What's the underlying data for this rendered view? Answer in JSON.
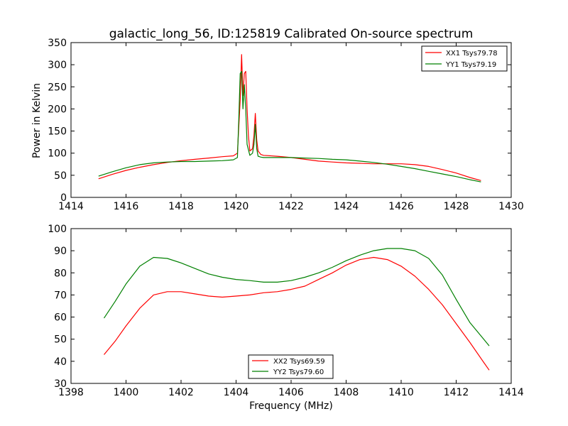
{
  "chart_data": [
    {
      "type": "line",
      "title": "galactic_long_56, ID:125819 Calibrated On-source spectrum",
      "xlabel": "",
      "ylabel": "Power in Kelvin",
      "xlim": [
        1414,
        1430
      ],
      "ylim": [
        0,
        350
      ],
      "xticks": [
        "1414",
        "1416",
        "1418",
        "1420",
        "1422",
        "1424",
        "1426",
        "1428",
        "1430"
      ],
      "yticks": [
        "0",
        "50",
        "100",
        "150",
        "200",
        "250",
        "300",
        "350"
      ],
      "legend_position": "top-right",
      "grid": false,
      "series": [
        {
          "name": "XX1 Tsys79.78",
          "color": "#ff0000",
          "x": [
            1415.0,
            1415.5,
            1416.0,
            1416.5,
            1417.0,
            1417.5,
            1418.0,
            1418.5,
            1419.0,
            1419.5,
            1419.9,
            1420.05,
            1420.15,
            1420.2,
            1420.25,
            1420.3,
            1420.35,
            1420.4,
            1420.45,
            1420.5,
            1420.6,
            1420.65,
            1420.7,
            1420.75,
            1420.8,
            1420.9,
            1421.0,
            1421.5,
            1422.0,
            1422.5,
            1423.0,
            1423.5,
            1424.0,
            1424.5,
            1425.0,
            1425.5,
            1426.0,
            1426.5,
            1427.0,
            1427.5,
            1428.0,
            1428.5,
            1428.9
          ],
          "values": [
            42,
            52,
            61,
            68,
            74,
            79,
            83,
            86,
            89,
            92,
            94,
            100,
            220,
            323,
            230,
            280,
            285,
            200,
            140,
            105,
            110,
            140,
            190,
            130,
            105,
            97,
            95,
            93,
            90,
            86,
            82,
            80,
            78,
            77,
            76,
            76,
            76,
            74,
            70,
            63,
            55,
            45,
            38
          ]
        },
        {
          "name": "YY1 Tsys79.19",
          "color": "#008000",
          "x": [
            1415.0,
            1415.5,
            1416.0,
            1416.5,
            1417.0,
            1417.5,
            1418.0,
            1418.5,
            1419.0,
            1419.5,
            1419.9,
            1420.05,
            1420.1,
            1420.15,
            1420.2,
            1420.25,
            1420.3,
            1420.35,
            1420.4,
            1420.5,
            1420.6,
            1420.65,
            1420.7,
            1420.75,
            1420.8,
            1420.9,
            1421.0,
            1421.5,
            1422.0,
            1422.5,
            1423.0,
            1423.5,
            1424.0,
            1424.5,
            1425.0,
            1425.5,
            1426.0,
            1426.5,
            1427.0,
            1427.5,
            1428.0,
            1428.5,
            1428.9
          ],
          "values": [
            48,
            58,
            67,
            74,
            78,
            80,
            81,
            81,
            82,
            83,
            85,
            90,
            180,
            280,
            285,
            200,
            255,
            200,
            120,
            95,
            100,
            120,
            165,
            110,
            93,
            91,
            90,
            90,
            90,
            89,
            88,
            86,
            85,
            82,
            79,
            75,
            70,
            65,
            59,
            53,
            47,
            40,
            35
          ]
        }
      ]
    },
    {
      "type": "line",
      "title": "",
      "xlabel": "Frequency (MHz)",
      "ylabel": "",
      "xlim": [
        1398,
        1414
      ],
      "ylim": [
        30,
        100
      ],
      "xticks": [
        "1398",
        "1400",
        "1402",
        "1404",
        "1406",
        "1408",
        "1410",
        "1412",
        "1414"
      ],
      "yticks": [
        "30",
        "40",
        "50",
        "60",
        "70",
        "80",
        "90",
        "100"
      ],
      "legend_position": "lower-center",
      "grid": false,
      "series": [
        {
          "name": "XX2 Tsys69.59",
          "color": "#ff0000",
          "x": [
            1399.2,
            1399.6,
            1400.0,
            1400.5,
            1401.0,
            1401.5,
            1402.0,
            1402.5,
            1403.0,
            1403.5,
            1404.0,
            1404.5,
            1405.0,
            1405.5,
            1406.0,
            1406.5,
            1407.0,
            1407.5,
            1408.0,
            1408.5,
            1409.0,
            1409.5,
            1410.0,
            1410.5,
            1411.0,
            1411.5,
            1412.0,
            1412.5,
            1413.0,
            1413.2
          ],
          "values": [
            43,
            49,
            56,
            64,
            70,
            71.5,
            71.5,
            70.5,
            69.5,
            69,
            69.5,
            70,
            71,
            71.5,
            72.5,
            74,
            77,
            80,
            83.5,
            86,
            87,
            86,
            83,
            78.5,
            72.5,
            65.5,
            57,
            48.5,
            39.5,
            36
          ]
        },
        {
          "name": "YY2 Tsys79.60",
          "color": "#008000",
          "x": [
            1399.2,
            1399.6,
            1400.0,
            1400.5,
            1401.0,
            1401.5,
            1402.0,
            1402.5,
            1403.0,
            1403.5,
            1404.0,
            1404.5,
            1405.0,
            1405.5,
            1406.0,
            1406.5,
            1407.0,
            1407.5,
            1408.0,
            1408.5,
            1409.0,
            1409.5,
            1410.0,
            1410.5,
            1411.0,
            1411.5,
            1412.0,
            1412.5,
            1413.0,
            1413.2
          ],
          "values": [
            59.5,
            67,
            75,
            83,
            87,
            86.5,
            84.5,
            82,
            79.5,
            78,
            77,
            76.5,
            75.8,
            75.8,
            76.5,
            78,
            80,
            82.5,
            85.5,
            88,
            90,
            91,
            91,
            90,
            86.5,
            79,
            68,
            57.5,
            50,
            47
          ]
        }
      ]
    }
  ]
}
